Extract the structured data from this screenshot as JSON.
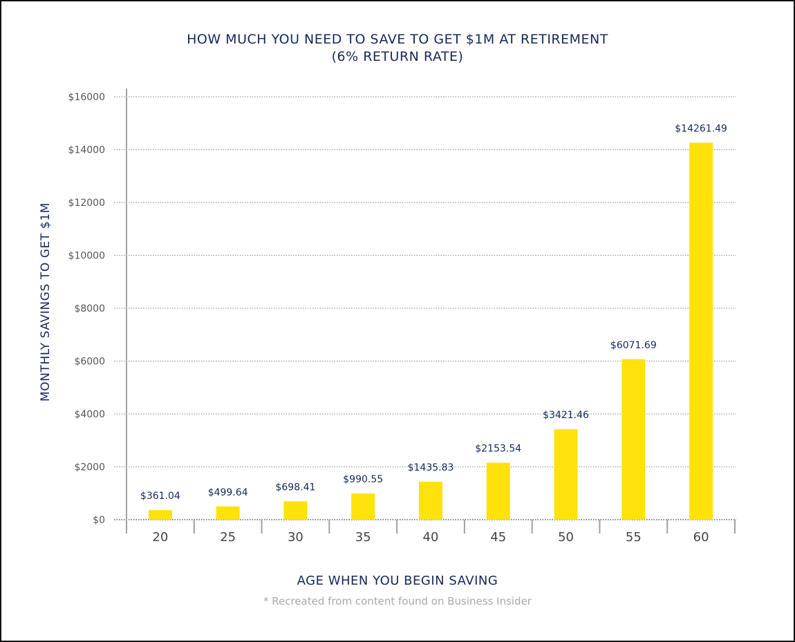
{
  "chart_data": {
    "type": "bar",
    "title": "HOW MUCH YOU NEED TO SAVE TO GET $1M AT RETIREMENT",
    "subtitle": "(6% RETURN RATE)",
    "xlabel": "AGE WHEN YOU BEGIN SAVING",
    "ylabel": "MONTHLY SAVINGS TO GET $1M",
    "note": "* Recreated from content found on Business Insider",
    "categories": [
      "20",
      "25",
      "30",
      "35",
      "40",
      "45",
      "50",
      "55",
      "60"
    ],
    "values": [
      361.04,
      499.64,
      698.41,
      990.55,
      1435.83,
      2153.54,
      3421.46,
      6071.69,
      14261.49
    ],
    "data_labels": [
      "$361.04",
      "$499.64",
      "$698.41",
      "$990.55",
      "$1435.83",
      "$2153.54",
      "$3421.46",
      "$6071.69",
      "$14261.49"
    ],
    "ylim": [
      0,
      16000
    ],
    "yticks": [
      0,
      2000,
      4000,
      6000,
      8000,
      10000,
      12000,
      14000,
      16000
    ],
    "ytick_labels": [
      "$0",
      "$2000",
      "$4000",
      "$6000",
      "$8000",
      "$10000",
      "$12000",
      "$14000",
      "$16000"
    ],
    "grid": true,
    "grid_style": "dotted",
    "legend": "none",
    "colors": {
      "bar": "#FFE20A",
      "text": "#13295A",
      "grid": "#9a9a9a",
      "axis": "#a0a0a0",
      "note": "#A9A9A9"
    }
  }
}
